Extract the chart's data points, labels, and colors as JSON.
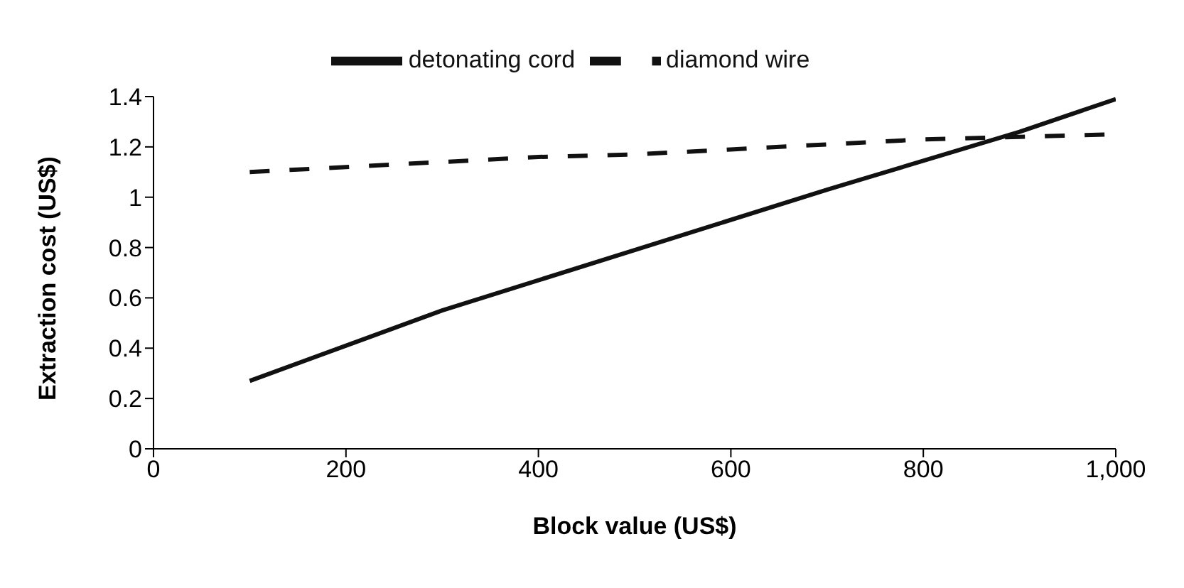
{
  "chart_data": {
    "type": "line",
    "xlabel": "Block value (US$)",
    "ylabel": "Extraction cost (US$)",
    "xlim": [
      0,
      1000
    ],
    "xticks": [
      0,
      200,
      400,
      600,
      800,
      {
        "value": 1000,
        "label": "1,000"
      }
    ],
    "ylim": [
      0,
      1.4
    ],
    "yticks": [
      0,
      0.2,
      0.4,
      0.6,
      0.8,
      1,
      1.2,
      1.4
    ],
    "grid": false,
    "legend": "top",
    "marker": "none",
    "series": [
      {
        "name": "detonating cord",
        "color": "#111111",
        "line_style": "solid",
        "x": [
          100,
          300,
          500,
          700,
          900,
          1000
        ],
        "values": [
          0.27,
          0.55,
          0.79,
          1.03,
          1.26,
          1.39
        ]
      },
      {
        "name": "diamond wire",
        "color": "#111111",
        "line_style": "dashed",
        "x": [
          100,
          200,
          300,
          400,
          500,
          600,
          700,
          800,
          900,
          1000
        ],
        "values": [
          1.1,
          1.12,
          1.14,
          1.16,
          1.17,
          1.19,
          1.21,
          1.23,
          1.24,
          1.25
        ]
      }
    ]
  }
}
